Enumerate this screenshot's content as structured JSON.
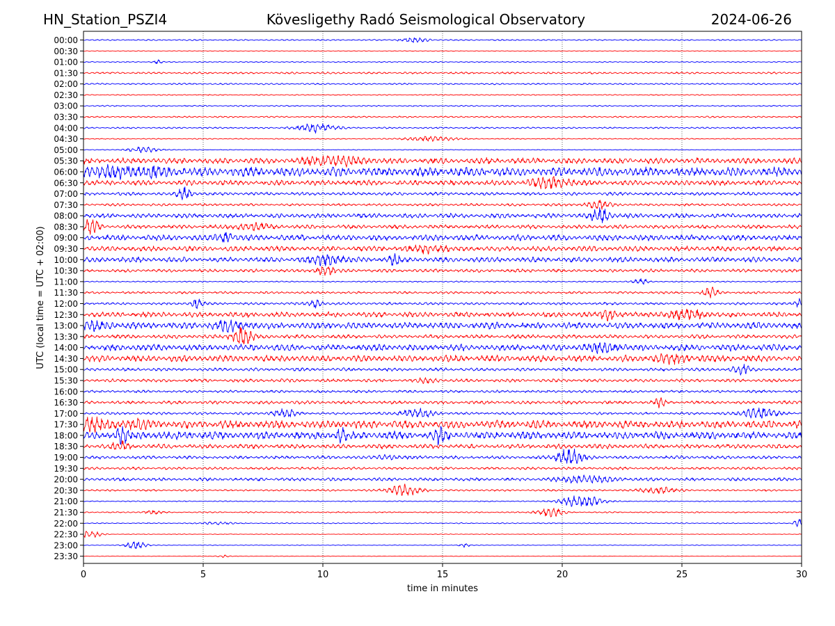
{
  "chart_data": {
    "type": "line",
    "title_left": "HN_Station_PSZI4",
    "title_center": "Kövesligethy Radó Seismological Observatory",
    "title_right": "2024-06-26",
    "xlabel": "time in minutes",
    "ylabel": "UTC (local time = UTC + 02:00)",
    "xlim": [
      0,
      30
    ],
    "x_ticks": [
      0,
      5,
      10,
      15,
      20,
      25,
      30
    ],
    "x_tick_labels": [
      "0",
      "5",
      "10",
      "15",
      "20",
      "25",
      "30"
    ],
    "grid": "vertical dotted at x ticks",
    "trace_colors": [
      "#0000ff",
      "#ff0000"
    ],
    "series": [
      {
        "name": "00:00",
        "color": "#0000ff",
        "base_amp": 0.1,
        "bursts": [
          [
            13.8,
            0.8,
            0.45
          ]
        ]
      },
      {
        "name": "00:30",
        "color": "#ff0000",
        "base_amp": 0.05,
        "bursts": []
      },
      {
        "name": "01:00",
        "color": "#0000ff",
        "base_amp": 0.08,
        "bursts": [
          [
            3.1,
            0.3,
            0.3
          ]
        ]
      },
      {
        "name": "01:30",
        "color": "#ff0000",
        "base_amp": 0.15,
        "bursts": []
      },
      {
        "name": "02:00",
        "color": "#0000ff",
        "base_amp": 0.12,
        "bursts": []
      },
      {
        "name": "02:30",
        "color": "#ff0000",
        "base_amp": 0.08,
        "bursts": []
      },
      {
        "name": "03:00",
        "color": "#0000ff",
        "base_amp": 0.1,
        "bursts": []
      },
      {
        "name": "03:30",
        "color": "#ff0000",
        "base_amp": 0.12,
        "bursts": []
      },
      {
        "name": "04:00",
        "color": "#0000ff",
        "base_amp": 0.12,
        "bursts": [
          [
            9.7,
            1.1,
            0.8
          ]
        ]
      },
      {
        "name": "04:30",
        "color": "#ff0000",
        "base_amp": 0.08,
        "bursts": [
          [
            14.5,
            1.5,
            0.4
          ]
        ]
      },
      {
        "name": "05:00",
        "color": "#0000ff",
        "base_amp": 0.06,
        "bursts": [
          [
            2.5,
            1.0,
            0.45
          ]
        ]
      },
      {
        "name": "05:30",
        "color": "#ff0000",
        "base_amp": 0.45,
        "bursts": [
          [
            10.5,
            1.5,
            0.8
          ]
        ]
      },
      {
        "name": "06:00",
        "color": "#0000ff",
        "base_amp": 0.7,
        "bursts": [
          [
            1.5,
            3,
            0.5
          ]
        ]
      },
      {
        "name": "06:30",
        "color": "#ff0000",
        "base_amp": 0.4,
        "bursts": [
          [
            19.5,
            1.2,
            0.7
          ]
        ]
      },
      {
        "name": "07:00",
        "color": "#0000ff",
        "base_amp": 0.25,
        "bursts": [
          [
            4.2,
            0.4,
            1.0
          ]
        ]
      },
      {
        "name": "07:30",
        "color": "#ff0000",
        "base_amp": 0.2,
        "bursts": [
          [
            21.5,
            0.8,
            0.6
          ]
        ]
      },
      {
        "name": "08:00",
        "color": "#0000ff",
        "base_amp": 0.35,
        "bursts": [
          [
            21.6,
            0.5,
            1.2
          ]
        ]
      },
      {
        "name": "08:30",
        "color": "#ff0000",
        "base_amp": 0.3,
        "bursts": [
          [
            0.3,
            0.5,
            1.1
          ],
          [
            7,
            1,
            0.5
          ]
        ]
      },
      {
        "name": "09:00",
        "color": "#0000ff",
        "base_amp": 0.45,
        "bursts": [
          [
            5.9,
            0.5,
            0.8
          ]
        ]
      },
      {
        "name": "09:30",
        "color": "#ff0000",
        "base_amp": 0.4,
        "bursts": [
          [
            14.5,
            0.8,
            0.6
          ]
        ]
      },
      {
        "name": "10:00",
        "color": "#0000ff",
        "base_amp": 0.4,
        "bursts": [
          [
            10.2,
            1.0,
            0.8
          ],
          [
            13,
            0.3,
            0.8
          ]
        ]
      },
      {
        "name": "10:30",
        "color": "#ff0000",
        "base_amp": 0.25,
        "bursts": [
          [
            10.1,
            0.5,
            0.8
          ]
        ]
      },
      {
        "name": "11:00",
        "color": "#0000ff",
        "base_amp": 0.1,
        "bursts": [
          [
            23.3,
            0.4,
            0.5
          ]
        ]
      },
      {
        "name": "11:30",
        "color": "#ff0000",
        "base_amp": 0.18,
        "bursts": [
          [
            26.2,
            0.4,
            1.0
          ]
        ]
      },
      {
        "name": "12:00",
        "color": "#0000ff",
        "base_amp": 0.2,
        "bursts": [
          [
            4.7,
            0.4,
            0.7
          ],
          [
            9.7,
            0.4,
            0.7
          ],
          [
            29.9,
            0.2,
            0.8
          ]
        ]
      },
      {
        "name": "12:30",
        "color": "#ff0000",
        "base_amp": 0.4,
        "bursts": [
          [
            22,
            0.5,
            0.9
          ],
          [
            25.2,
            1.2,
            0.7
          ]
        ]
      },
      {
        "name": "13:00",
        "color": "#0000ff",
        "base_amp": 0.5,
        "bursts": [
          [
            0.5,
            1,
            0.5
          ],
          [
            6.1,
            1.0,
            0.6
          ]
        ]
      },
      {
        "name": "13:30",
        "color": "#ff0000",
        "base_amp": 0.3,
        "bursts": [
          [
            6.6,
            0.6,
            1.5
          ]
        ]
      },
      {
        "name": "14:00",
        "color": "#0000ff",
        "base_amp": 0.5,
        "bursts": [
          [
            21.8,
            1.0,
            0.6
          ]
        ]
      },
      {
        "name": "14:30",
        "color": "#ff0000",
        "base_amp": 0.5,
        "bursts": [
          [
            24.5,
            1.0,
            0.5
          ]
        ]
      },
      {
        "name": "15:00",
        "color": "#0000ff",
        "base_amp": 0.25,
        "bursts": [
          [
            27.5,
            0.5,
            0.8
          ]
        ]
      },
      {
        "name": "15:30",
        "color": "#ff0000",
        "base_amp": 0.25,
        "bursts": [
          [
            14.4,
            0.5,
            0.4
          ]
        ]
      },
      {
        "name": "16:00",
        "color": "#0000ff",
        "base_amp": 0.2,
        "bursts": []
      },
      {
        "name": "16:30",
        "color": "#ff0000",
        "base_amp": 0.25,
        "bursts": [
          [
            24.1,
            0.3,
            0.7
          ]
        ]
      },
      {
        "name": "17:00",
        "color": "#0000ff",
        "base_amp": 0.2,
        "bursts": [
          [
            8.4,
            0.7,
            0.7
          ],
          [
            13.9,
            1.0,
            0.7
          ],
          [
            28.2,
            1.0,
            0.9
          ]
        ]
      },
      {
        "name": "17:30",
        "color": "#ff0000",
        "base_amp": 0.6,
        "bursts": [
          [
            0.3,
            1,
            0.9
          ],
          [
            2.2,
            1.0,
            0.5
          ]
        ]
      },
      {
        "name": "18:00",
        "color": "#0000ff",
        "base_amp": 0.6,
        "bursts": [
          [
            1.6,
            0.4,
            1.0
          ],
          [
            10.8,
            0.3,
            1.0
          ],
          [
            14.9,
            0.4,
            1.0
          ]
        ]
      },
      {
        "name": "18:30",
        "color": "#ff0000",
        "base_amp": 0.35,
        "bursts": [
          [
            1.5,
            0.5,
            0.8
          ]
        ]
      },
      {
        "name": "19:00",
        "color": "#0000ff",
        "base_amp": 0.25,
        "bursts": [
          [
            20.3,
            0.7,
            1.4
          ],
          [
            12.8,
            0.6,
            0.4
          ]
        ]
      },
      {
        "name": "19:30",
        "color": "#ff0000",
        "base_amp": 0.2,
        "bursts": []
      },
      {
        "name": "20:00",
        "color": "#0000ff",
        "base_amp": 0.25,
        "bursts": [
          [
            21,
            1.5,
            0.6
          ]
        ]
      },
      {
        "name": "20:30",
        "color": "#ff0000",
        "base_amp": 0.15,
        "bursts": [
          [
            13.4,
            1.0,
            0.9
          ],
          [
            24,
            1.0,
            0.5
          ]
        ]
      },
      {
        "name": "21:00",
        "color": "#0000ff",
        "base_amp": 0.08,
        "bursts": [
          [
            20.8,
            1.2,
            1.0
          ]
        ]
      },
      {
        "name": "21:30",
        "color": "#ff0000",
        "base_amp": 0.1,
        "bursts": [
          [
            19.5,
            0.8,
            0.7
          ],
          [
            2.9,
            0.5,
            0.3
          ]
        ]
      },
      {
        "name": "22:00",
        "color": "#0000ff",
        "base_amp": 0.08,
        "bursts": [
          [
            5.6,
            0.7,
            0.3
          ],
          [
            29.9,
            0.3,
            0.8
          ]
        ]
      },
      {
        "name": "22:30",
        "color": "#ff0000",
        "base_amp": 0.05,
        "bursts": [
          [
            0.3,
            0.6,
            0.7
          ]
        ]
      },
      {
        "name": "23:00",
        "color": "#0000ff",
        "base_amp": 0.05,
        "bursts": [
          [
            2.2,
            0.6,
            0.7
          ],
          [
            15.9,
            0.3,
            0.4
          ]
        ]
      },
      {
        "name": "23:30",
        "color": "#ff0000",
        "base_amp": 0.04,
        "bursts": [
          [
            5.8,
            0.4,
            0.2
          ]
        ]
      }
    ]
  }
}
